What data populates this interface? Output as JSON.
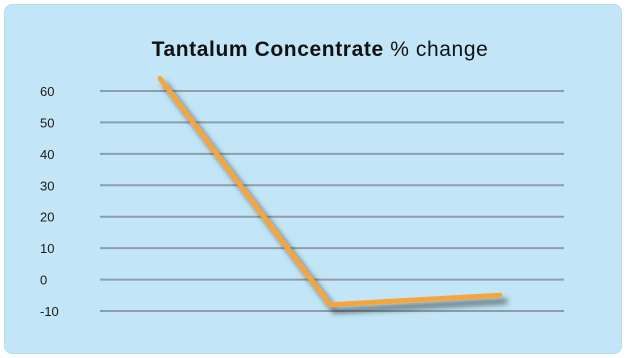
{
  "chart_data": {
    "type": "line",
    "title_bold": "Tantalum Concentrate",
    "title_rest": "% change",
    "xlabel": "",
    "ylabel": "",
    "ylim": [
      -10,
      60
    ],
    "yticks": [
      60,
      50,
      40,
      30,
      20,
      10,
      0,
      -10
    ],
    "grid": true,
    "series": [
      {
        "color": "#f5a53a",
        "x": [
          0,
          1,
          2
        ],
        "y": [
          64,
          -8,
          -5
        ]
      }
    ]
  }
}
